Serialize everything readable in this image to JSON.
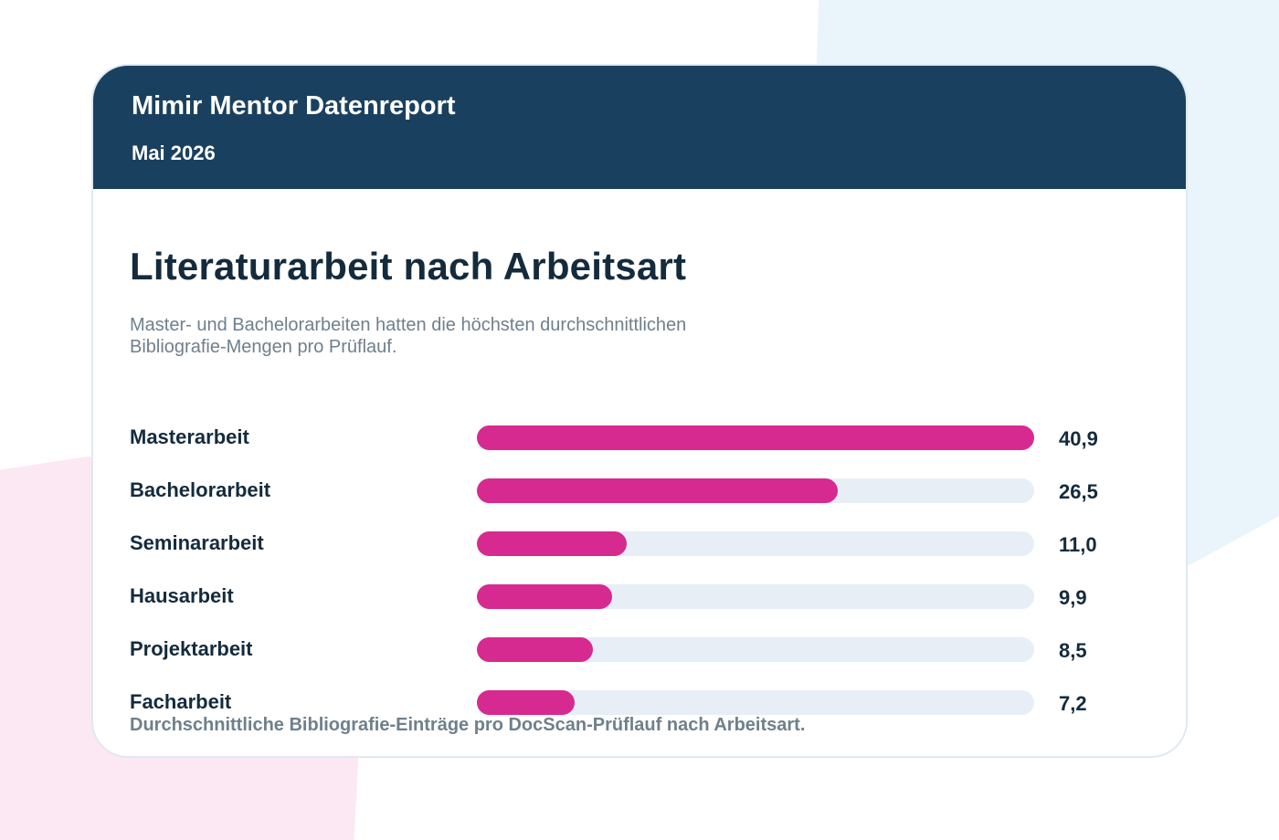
{
  "header": {
    "brand_title": "Mimir Mentor Datenreport",
    "date": "Mai 2026"
  },
  "chart_data": {
    "type": "bar",
    "orientation": "horizontal",
    "title": "Literaturarbeit nach Arbeitsart",
    "subtitle": "Master- und Bachelorarbeiten hatten die höchsten durchschnittlichen Bibliografie-Mengen pro Prüflauf.",
    "categories": [
      "Masterarbeit",
      "Bachelorarbeit",
      "Seminararbeit",
      "Hausarbeit",
      "Projektarbeit",
      "Facharbeit"
    ],
    "values": [
      40.9,
      26.5,
      11.0,
      9.9,
      8.5,
      7.2
    ],
    "value_labels": [
      "40,9",
      "26,5",
      "11,0",
      "9,9",
      "8,5",
      "7,2"
    ],
    "xlim": [
      0,
      40.9
    ],
    "grid": false,
    "bar_color": "#d62a90",
    "track_color": "#e8eef6",
    "caption": "Durchschnittliche Bibliografie-Einträge pro DocScan-Prüflauf nach Arbeitsart."
  },
  "colors": {
    "header_bg": "#1a405f",
    "title_text": "#142b3d",
    "muted_text": "#6f7f8d"
  }
}
